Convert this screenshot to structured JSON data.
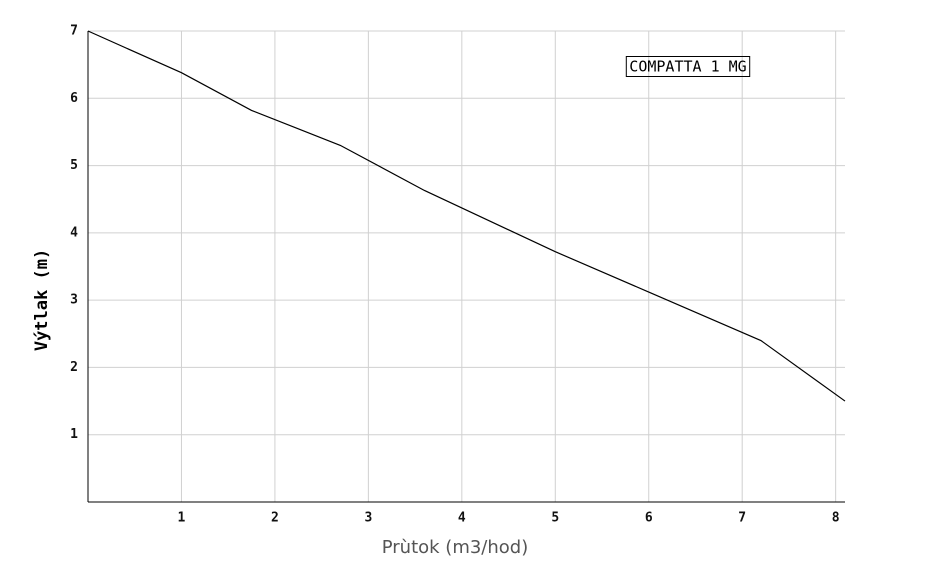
{
  "chart_data": {
    "type": "line",
    "x_label": "Prùtok (m3/hod)",
    "y_label": "Výtlak (m)",
    "x": [
      0,
      1,
      1.75,
      2.7,
      3.6,
      5,
      6,
      7.2,
      8.1
    ],
    "series": [
      {
        "name": "COMPATTA 1 MG",
        "color": "#000000",
        "values": [
          7,
          6.38,
          5.82,
          5.3,
          4.63,
          3.72,
          3.12,
          2.4,
          1.5
        ]
      }
    ],
    "xlim": [
      0,
      8.1
    ],
    "ylim": [
      0,
      7
    ],
    "xticks": [
      1,
      2,
      3,
      4,
      5,
      6,
      7,
      8
    ],
    "yticks": [
      1,
      2,
      3,
      4,
      5,
      6,
      7
    ],
    "grid": true,
    "legend": "upper-right"
  }
}
